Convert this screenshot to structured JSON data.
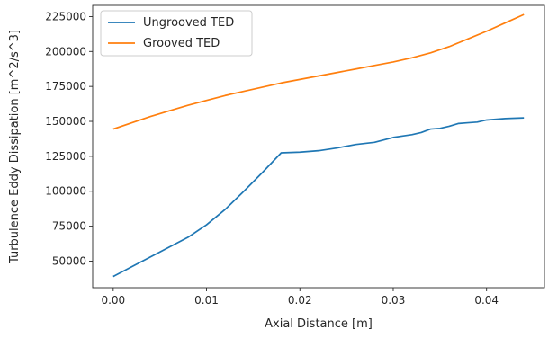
{
  "chart_data": {
    "type": "line",
    "xlabel": "Axial Distance [m]",
    "ylabel": "Turbulence Eddy Dissipation [m^2/s^3]",
    "xlim": [
      -0.0022,
      0.0462
    ],
    "ylim": [
      31000,
      233000
    ],
    "xticks": [
      0.0,
      0.01,
      0.02,
      0.03,
      0.04
    ],
    "xtick_labels": [
      "0.00",
      "0.01",
      "0.02",
      "0.03",
      "0.04"
    ],
    "yticks": [
      50000,
      75000,
      100000,
      125000,
      150000,
      175000,
      200000,
      225000
    ],
    "ytick_labels": [
      "50000",
      "75000",
      "100000",
      "125000",
      "150000",
      "175000",
      "200000",
      "225000"
    ],
    "grid": false,
    "legend_position": "top-left",
    "series": [
      {
        "name": "Ungrooved TED",
        "color": "#1f77b4",
        "x": [
          0.0,
          0.002,
          0.004,
          0.006,
          0.008,
          0.01,
          0.012,
          0.014,
          0.016,
          0.018,
          0.02,
          0.022,
          0.024,
          0.026,
          0.028,
          0.03,
          0.031,
          0.032,
          0.033,
          0.034,
          0.035,
          0.036,
          0.037,
          0.038,
          0.039,
          0.04,
          0.042,
          0.044
        ],
        "y": [
          39000,
          46000,
          53000,
          60000,
          67000,
          76000,
          87000,
          100000,
          113500,
          127500,
          128000,
          129000,
          131000,
          133500,
          135000,
          138500,
          139500,
          140500,
          142000,
          144500,
          145000,
          146500,
          148500,
          149000,
          149500,
          151000,
          152000,
          152500
        ]
      },
      {
        "name": "Grooved TED",
        "color": "#ff7f0e",
        "x": [
          0.0,
          0.002,
          0.004,
          0.006,
          0.008,
          0.01,
          0.012,
          0.014,
          0.016,
          0.018,
          0.02,
          0.022,
          0.024,
          0.026,
          0.028,
          0.03,
          0.032,
          0.034,
          0.036,
          0.038,
          0.04,
          0.042,
          0.044
        ],
        "y": [
          144500,
          149000,
          153500,
          157500,
          161500,
          165000,
          168500,
          171500,
          174500,
          177500,
          180000,
          182500,
          185000,
          187500,
          190000,
          192500,
          195500,
          199000,
          203500,
          209000,
          214500,
          220500,
          226500
        ]
      }
    ]
  }
}
